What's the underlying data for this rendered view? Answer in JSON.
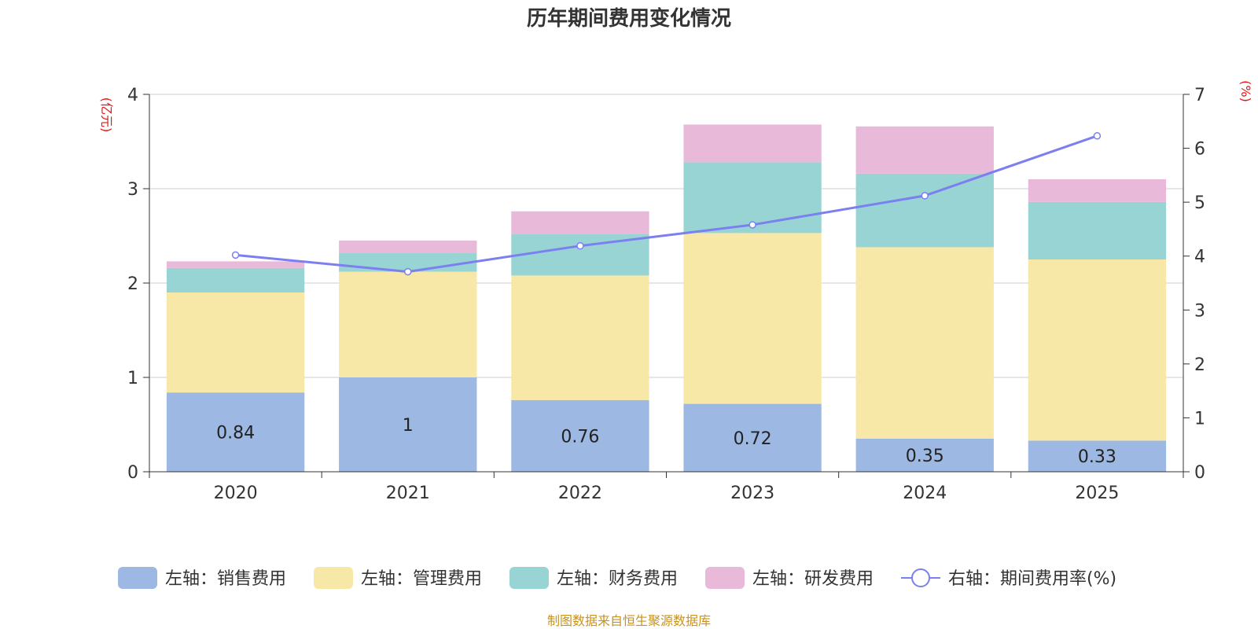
{
  "chart_data": {
    "type": "bar",
    "title": "历年期间费用变化情况",
    "left_axis_unit": "(亿元)",
    "right_axis_unit": "(%)",
    "categories": [
      "2020",
      "2021",
      "2022",
      "2023",
      "2024",
      "2025"
    ],
    "left_ylim": [
      0,
      4
    ],
    "left_ticks": [
      "0",
      "1",
      "2",
      "3",
      "4"
    ],
    "right_ylim": [
      0,
      7
    ],
    "right_ticks": [
      "0",
      "1",
      "2",
      "3",
      "4",
      "5",
      "6",
      "7"
    ],
    "grid": true,
    "legend_position": "bottom",
    "series": [
      {
        "name": "左轴：销售费用",
        "color": "#9db8e2",
        "values": [
          0.84,
          1.0,
          0.76,
          0.72,
          0.35,
          0.33
        ],
        "labels": [
          "0.84",
          "1",
          "0.76",
          "0.72",
          "0.35",
          "0.33"
        ]
      },
      {
        "name": "左轴：管理费用",
        "color": "#f8e8a8",
        "values": [
          1.06,
          1.12,
          1.32,
          1.81,
          2.03,
          1.92
        ]
      },
      {
        "name": "左轴：财务费用",
        "color": "#98d4d4",
        "values": [
          0.26,
          0.2,
          0.44,
          0.75,
          0.78,
          0.61
        ]
      },
      {
        "name": "左轴：研发费用",
        "color": "#e8b9d9",
        "values": [
          0.07,
          0.13,
          0.24,
          0.4,
          0.5,
          0.24
        ]
      }
    ],
    "line_series": {
      "name": "右轴：期间费用率(%)",
      "color": "#7b7fef",
      "values": [
        4.02,
        3.71,
        4.19,
        4.58,
        5.12,
        6.23
      ]
    },
    "source": "制图数据来自恒生聚源数据库"
  }
}
